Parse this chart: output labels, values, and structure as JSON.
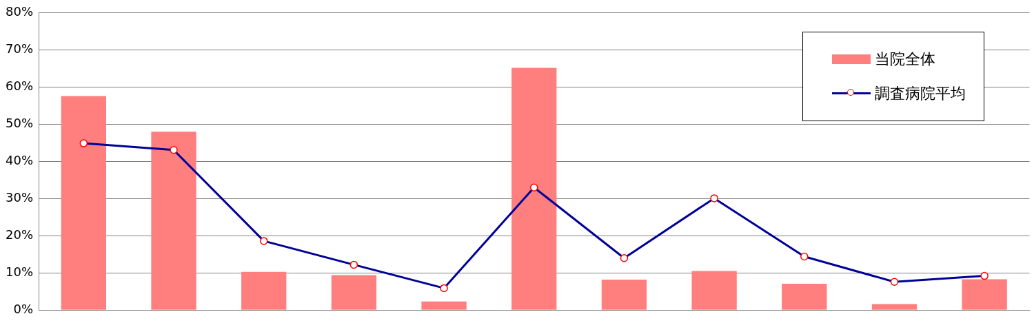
{
  "chart_data": {
    "type": "bar",
    "categories": [
      null,
      null,
      null,
      null,
      null,
      null,
      null,
      null,
      null,
      null,
      null
    ],
    "series": [
      {
        "name": "当院全体",
        "color": "#ff7f7f",
        "values": [
          57.6,
          48.0,
          10.3,
          9.4,
          2.3,
          65.2,
          8.2,
          10.5,
          7.1,
          1.6,
          8.3
        ]
      },
      {
        "name": "調査病院平均",
        "type": "line",
        "color": "#000099",
        "values": [
          44.9,
          43.1,
          18.6,
          12.2,
          5.9,
          33.0,
          14.0,
          30.1,
          14.4,
          7.6,
          9.2
        ]
      }
    ],
    "ylim": [
      0,
      80
    ],
    "yticks": [
      {
        "value": 0,
        "label": "0%"
      },
      {
        "value": 10,
        "label": "10%"
      },
      {
        "value": 20,
        "label": "20%"
      },
      {
        "value": 30,
        "label": "30%"
      },
      {
        "value": 40,
        "label": "40%"
      },
      {
        "value": 50,
        "label": "50%"
      },
      {
        "value": 60,
        "label": "60%"
      },
      {
        "value": 70,
        "label": "70%"
      },
      {
        "value": 80,
        "label": "80%"
      }
    ],
    "grid": "y",
    "legend": "top right",
    "marker": "circle",
    "line_style": "solid"
  }
}
